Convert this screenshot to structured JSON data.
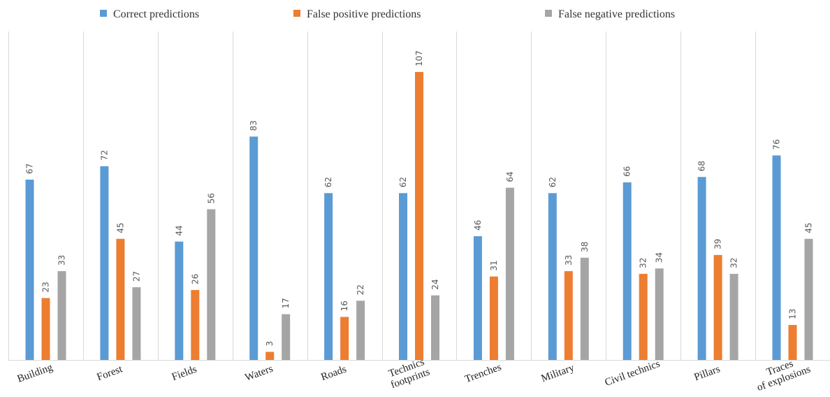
{
  "chart_data": {
    "type": "bar",
    "categories": [
      [
        "Building"
      ],
      [
        "Forest"
      ],
      [
        "Fields"
      ],
      [
        "Waters"
      ],
      [
        "Roads"
      ],
      [
        "Technics",
        "footprints"
      ],
      [
        "Trenches"
      ],
      [
        "Military"
      ],
      [
        "Civil technics"
      ],
      [
        "Pillars"
      ],
      [
        "Traces",
        "of explosions"
      ]
    ],
    "series": [
      {
        "name": "Correct predictions",
        "color": "#5b9bd5",
        "values": [
          67,
          72,
          44,
          83,
          62,
          62,
          46,
          62,
          66,
          68,
          76
        ]
      },
      {
        "name": "False positive predictions",
        "color": "#ed7d31",
        "values": [
          23,
          45,
          26,
          3,
          16,
          107,
          31,
          33,
          32,
          39,
          13
        ]
      },
      {
        "name": "False negative predictions",
        "color": "#a5a5a5",
        "values": [
          33,
          27,
          56,
          17,
          22,
          24,
          64,
          38,
          34,
          32,
          45
        ]
      }
    ],
    "ylim": [
      0,
      110
    ],
    "grid": "vertical separators between categories",
    "legend": "top"
  }
}
